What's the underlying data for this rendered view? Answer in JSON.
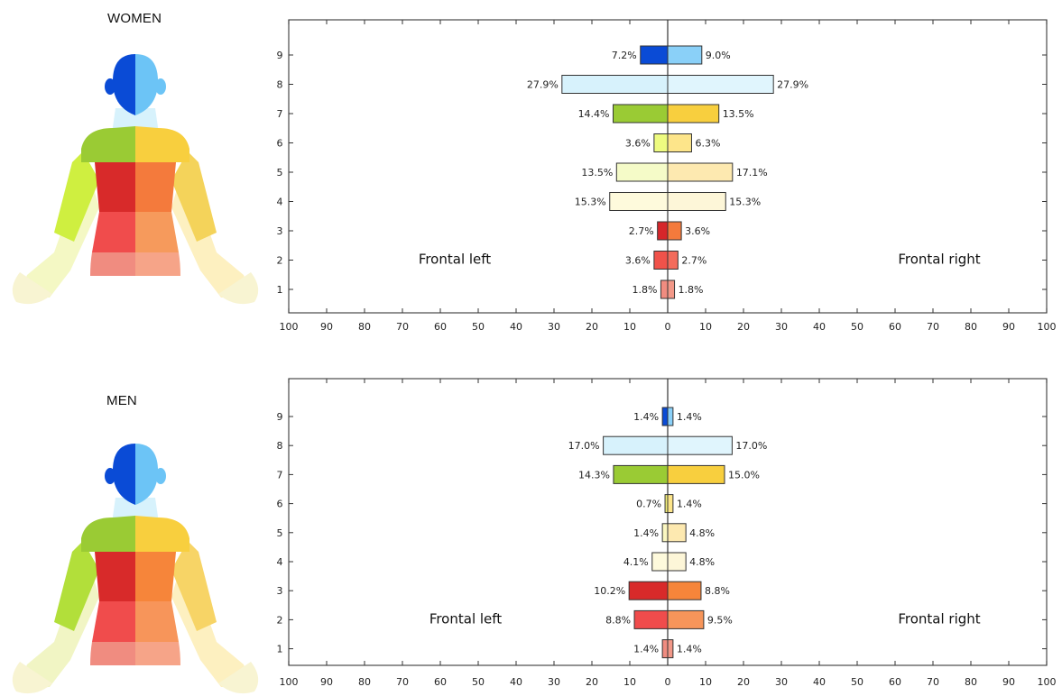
{
  "panels": [
    {
      "label": "WOMEN"
    },
    {
      "label": "MEN"
    }
  ],
  "chart_data": [
    {
      "type": "bar",
      "title": "WOMEN",
      "orientation": "horizontal-diverging",
      "categories": [
        "1",
        "2",
        "3",
        "4",
        "5",
        "6",
        "7",
        "8",
        "9"
      ],
      "series": [
        {
          "name": "Frontal left",
          "values": [
            1.8,
            3.6,
            2.7,
            15.3,
            13.5,
            3.6,
            14.4,
            27.9,
            7.2
          ]
        },
        {
          "name": "Frontal right",
          "values": [
            1.8,
            2.7,
            3.6,
            15.3,
            17.1,
            6.3,
            13.5,
            27.9,
            9.0
          ]
        }
      ],
      "value_labels": {
        "left": [
          "1.8%",
          "3.6%",
          "2.7%",
          "15.3%",
          "13.5%",
          "3.6%",
          "14.4%",
          "27.9%",
          "7.2%"
        ],
        "right": [
          "1.8%",
          "2.7%",
          "3.6%",
          "15.3%",
          "17.1%",
          "6.3%",
          "13.5%",
          "27.9%",
          "9.0%"
        ]
      },
      "colors": {
        "left": [
          "#f08c80",
          "#f0524a",
          "#d6262a",
          "#fefadc",
          "#f5fbc8",
          "#eefb80",
          "#9acb34",
          "#d7f2fc",
          "#0a4bd6"
        ],
        "right": [
          "#f29888",
          "#f36c5c",
          "#f47a3c",
          "#fdf6d8",
          "#fde9b0",
          "#fde58a",
          "#f8cf3e",
          "#e0f5fd",
          "#8ad0f8"
        ]
      },
      "xticks": [
        "100",
        "90",
        "80",
        "70",
        "60",
        "50",
        "40",
        "30",
        "20",
        "10",
        "0",
        "10",
        "20",
        "30",
        "40",
        "50",
        "60",
        "70",
        "80",
        "90",
        "100"
      ],
      "xlim": [
        -100,
        100
      ],
      "legend": "inside, left and right halves"
    },
    {
      "type": "bar",
      "title": "MEN",
      "orientation": "horizontal-diverging",
      "categories": [
        "1",
        "2",
        "3",
        "4",
        "5",
        "6",
        "7",
        "8",
        "9"
      ],
      "series": [
        {
          "name": "Frontal left",
          "values": [
            1.4,
            8.8,
            10.2,
            4.1,
            1.4,
            0.7,
            14.3,
            17.0,
            1.4
          ]
        },
        {
          "name": "Frontal right",
          "values": [
            1.4,
            9.5,
            8.8,
            4.8,
            4.8,
            1.4,
            15.0,
            17.0,
            1.4
          ]
        }
      ],
      "value_labels": {
        "left": [
          "1.4%",
          "8.8%",
          "10.2%",
          "4.1%",
          "1.4%",
          "0.7%",
          "14.3%",
          "17.0%",
          "1.4%"
        ],
        "right": [
          "1.4%",
          "9.5%",
          "8.8%",
          "4.8%",
          "4.8%",
          "1.4%",
          "15.0%",
          "17.0%",
          "1.4%"
        ]
      },
      "colors": {
        "left": [
          "#f08c80",
          "#f04c4c",
          "#d82a2a",
          "#fefadc",
          "#fbf7c0",
          "#f4f07a",
          "#9acb34",
          "#d7f2fc",
          "#0a4bd6"
        ],
        "right": [
          "#f29888",
          "#f7955a",
          "#f6853a",
          "#fdf6d8",
          "#fde9b0",
          "#fde58a",
          "#f8cf3e",
          "#e0f5fd",
          "#8ad0f8"
        ]
      },
      "xticks": [
        "100",
        "90",
        "80",
        "70",
        "60",
        "50",
        "40",
        "30",
        "20",
        "10",
        "0",
        "10",
        "20",
        "30",
        "40",
        "50",
        "60",
        "70",
        "80",
        "90",
        "100"
      ],
      "xlim": [
        -100,
        100
      ],
      "legend": "inside, left and right halves"
    }
  ],
  "figures": [
    {
      "colors": {
        "head_left": "#0a4bd6",
        "head_right": "#6cc4f6",
        "ear_left": "#0a4bd6",
        "ear_right": "#6cc4f6",
        "neck": "#d7f2fc",
        "shoulder_left": "#9acb34",
        "shoulder_right": "#f8cf3e",
        "upper_arm_left": "#cfef40",
        "upper_arm_right": "#f4d35a",
        "chest_left": "#d82a2a",
        "chest_right": "#f47a3c",
        "waist_left": "#f04c4c",
        "waist_right": "#f69a5c",
        "hip_left": "#f08c80",
        "hip_right": "#f6a488",
        "forearm": "#f4f8c4",
        "forearm_right": "#fdf0c0",
        "hand": "#f8f4d2"
      }
    },
    {
      "colors": {
        "head_left": "#0a4bd6",
        "head_right": "#6cc4f6",
        "ear_left": "#0a4bd6",
        "ear_right": "#6cc4f6",
        "neck": "#d7f2fc",
        "shoulder_left": "#9acb34",
        "shoulder_right": "#f8cf3e",
        "upper_arm_left": "#b2df3a",
        "upper_arm_right": "#f7d466",
        "chest_left": "#d82a2a",
        "chest_right": "#f6853a",
        "waist_left": "#f04c4c",
        "waist_right": "#f7955a",
        "hip_left": "#f08c80",
        "hip_right": "#f6a488",
        "forearm": "#f1f5c4",
        "forearm_right": "#fdf0c0",
        "hand": "#f8f4d2"
      }
    }
  ]
}
